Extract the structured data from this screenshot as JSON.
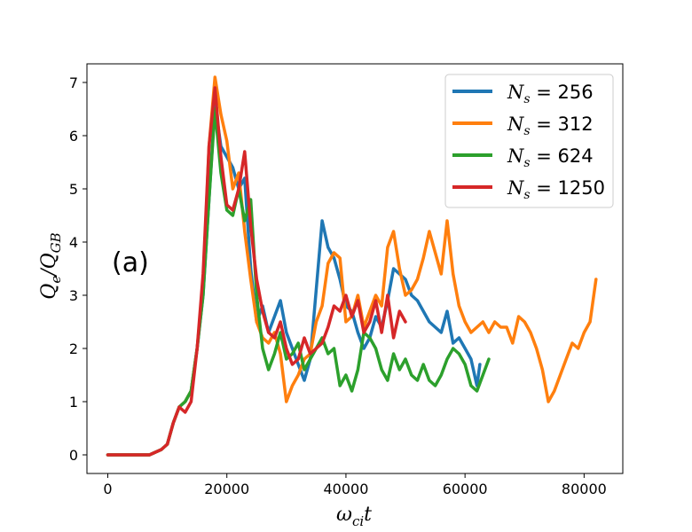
{
  "chart_data": {
    "type": "line",
    "title": "",
    "panel_label": "(a)",
    "xlabel": "ω_ci t",
    "ylabel": "Q_e/Q_GB",
    "xlim": [
      -3500,
      86500
    ],
    "ylim": [
      -0.35,
      7.35
    ],
    "xticks": [
      0,
      20000,
      40000,
      60000,
      80000
    ],
    "yticks": [
      0,
      1,
      2,
      3,
      4,
      5,
      6,
      7
    ],
    "grid": false,
    "legend_position": "top-right",
    "series": [
      {
        "name": "N_s = 256",
        "subscript_value": "256",
        "color": "#1f77b4",
        "x": [
          0,
          5000,
          7000,
          8000,
          9000,
          10000,
          11000,
          12000,
          13000,
          14000,
          15000,
          16000,
          17000,
          18000,
          19000,
          20000,
          21000,
          22000,
          23000,
          24000,
          25000,
          26000,
          27000,
          28000,
          29000,
          30000,
          31000,
          32000,
          33000,
          34000,
          35000,
          36000,
          37000,
          38000,
          39000,
          40000,
          41000,
          42000,
          43000,
          44000,
          45000,
          46000,
          47000,
          48000,
          49000,
          50000,
          51000,
          52000,
          53000,
          54000,
          55000,
          56000,
          57000,
          58000,
          59000,
          60000,
          61000,
          62000,
          62500
        ],
        "y": [
          0,
          0,
          0,
          0.05,
          0.1,
          0.2,
          0.6,
          0.9,
          1.0,
          1.2,
          2.0,
          3.0,
          4.8,
          6.6,
          5.8,
          5.6,
          5.4,
          5.0,
          5.2,
          3.5,
          2.5,
          2.8,
          2.3,
          2.6,
          2.9,
          2.3,
          2.0,
          1.7,
          1.4,
          1.8,
          3.1,
          4.4,
          3.9,
          3.7,
          3.3,
          2.8,
          2.7,
          2.3,
          2.0,
          2.2,
          2.6,
          2.4,
          2.9,
          3.5,
          3.4,
          3.3,
          3.0,
          2.9,
          2.7,
          2.5,
          2.4,
          2.3,
          2.7,
          2.1,
          2.2,
          2.0,
          1.8,
          1.3,
          1.7
        ]
      },
      {
        "name": "N_s = 312",
        "subscript_value": "312",
        "color": "#ff7f0e",
        "x": [
          0,
          5000,
          7000,
          8000,
          9000,
          10000,
          11000,
          12000,
          13000,
          14000,
          15000,
          16000,
          17000,
          18000,
          19000,
          20000,
          21000,
          22000,
          23000,
          24000,
          25000,
          26000,
          27000,
          28000,
          29000,
          30000,
          31000,
          32000,
          33000,
          34000,
          35000,
          36000,
          37000,
          38000,
          39000,
          40000,
          41000,
          42000,
          43000,
          44000,
          45000,
          46000,
          47000,
          48000,
          49000,
          50000,
          51000,
          52000,
          53000,
          54000,
          55000,
          56000,
          57000,
          58000,
          59000,
          60000,
          61000,
          62000,
          63000,
          64000,
          65000,
          66000,
          67000,
          68000,
          69000,
          70000,
          71000,
          72000,
          73000,
          74000,
          75000,
          76000,
          77000,
          78000,
          79000,
          80000,
          81000,
          82000
        ],
        "y": [
          0,
          0,
          0,
          0.05,
          0.1,
          0.2,
          0.6,
          0.9,
          1.0,
          1.2,
          2.0,
          3.2,
          5.8,
          7.1,
          6.4,
          5.9,
          5.0,
          5.3,
          4.2,
          3.3,
          2.5,
          2.2,
          2.1,
          2.3,
          1.9,
          1.0,
          1.3,
          1.5,
          1.8,
          1.9,
          2.5,
          2.8,
          3.6,
          3.8,
          3.7,
          2.5,
          2.6,
          3.0,
          2.4,
          2.7,
          3.0,
          2.8,
          3.9,
          4.2,
          3.5,
          3.0,
          3.1,
          3.3,
          3.7,
          4.2,
          3.8,
          3.4,
          4.4,
          3.4,
          2.8,
          2.5,
          2.3,
          2.4,
          2.5,
          2.3,
          2.5,
          2.4,
          2.4,
          2.1,
          2.6,
          2.5,
          2.3,
          2.0,
          1.6,
          1.0,
          1.2,
          1.5,
          1.8,
          2.1,
          2.0,
          2.3,
          2.5,
          3.3
        ]
      },
      {
        "name": "N_s = 624",
        "subscript_value": "624",
        "color": "#2ca02c",
        "x": [
          0,
          5000,
          7000,
          8000,
          9000,
          10000,
          11000,
          12000,
          13000,
          14000,
          15000,
          16000,
          17000,
          18000,
          19000,
          20000,
          21000,
          22000,
          23000,
          24000,
          25000,
          26000,
          27000,
          28000,
          29000,
          30000,
          31000,
          32000,
          33000,
          34000,
          35000,
          36000,
          37000,
          38000,
          39000,
          40000,
          41000,
          42000,
          43000,
          44000,
          45000,
          46000,
          47000,
          48000,
          49000,
          50000,
          51000,
          52000,
          53000,
          54000,
          55000,
          56000,
          57000,
          58000,
          59000,
          60000,
          61000,
          62000,
          63000,
          64000
        ],
        "y": [
          0,
          0,
          0,
          0.05,
          0.1,
          0.2,
          0.6,
          0.9,
          1.0,
          1.2,
          2.0,
          3.0,
          4.8,
          6.5,
          5.3,
          4.6,
          4.5,
          5.0,
          4.4,
          4.8,
          3.0,
          2.0,
          1.6,
          1.9,
          2.3,
          1.8,
          1.9,
          2.1,
          1.6,
          1.8,
          2.0,
          2.2,
          1.9,
          2.0,
          1.3,
          1.5,
          1.2,
          1.6,
          2.3,
          2.2,
          2.0,
          1.6,
          1.4,
          1.9,
          1.6,
          1.8,
          1.5,
          1.4,
          1.7,
          1.4,
          1.3,
          1.5,
          1.8,
          2.0,
          1.9,
          1.7,
          1.3,
          1.2,
          1.5,
          1.8
        ]
      },
      {
        "name": "N_s = 1250",
        "subscript_value": "1250",
        "color": "#d62728",
        "x": [
          0,
          5000,
          7000,
          8000,
          9000,
          10000,
          11000,
          12000,
          13000,
          14000,
          15000,
          16000,
          17000,
          18000,
          19000,
          20000,
          21000,
          22000,
          23000,
          24000,
          25000,
          26000,
          27000,
          28000,
          29000,
          30000,
          31000,
          32000,
          33000,
          34000,
          35000,
          36000,
          37000,
          38000,
          39000,
          40000,
          41000,
          42000,
          43000,
          44000,
          45000,
          46000,
          47000,
          48000,
          49000,
          50000
        ],
        "y": [
          0,
          0,
          0,
          0.05,
          0.1,
          0.2,
          0.6,
          0.9,
          0.8,
          1.0,
          2.0,
          3.4,
          5.8,
          6.9,
          5.6,
          4.7,
          4.6,
          5.0,
          5.7,
          4.3,
          3.3,
          2.7,
          2.3,
          2.2,
          2.5,
          2.0,
          1.7,
          1.8,
          2.2,
          1.9,
          2.0,
          2.1,
          2.4,
          2.8,
          2.7,
          3.0,
          2.6,
          2.9,
          2.3,
          2.5,
          2.9,
          2.3,
          3.0,
          2.2,
          2.7,
          2.5
        ]
      }
    ]
  }
}
